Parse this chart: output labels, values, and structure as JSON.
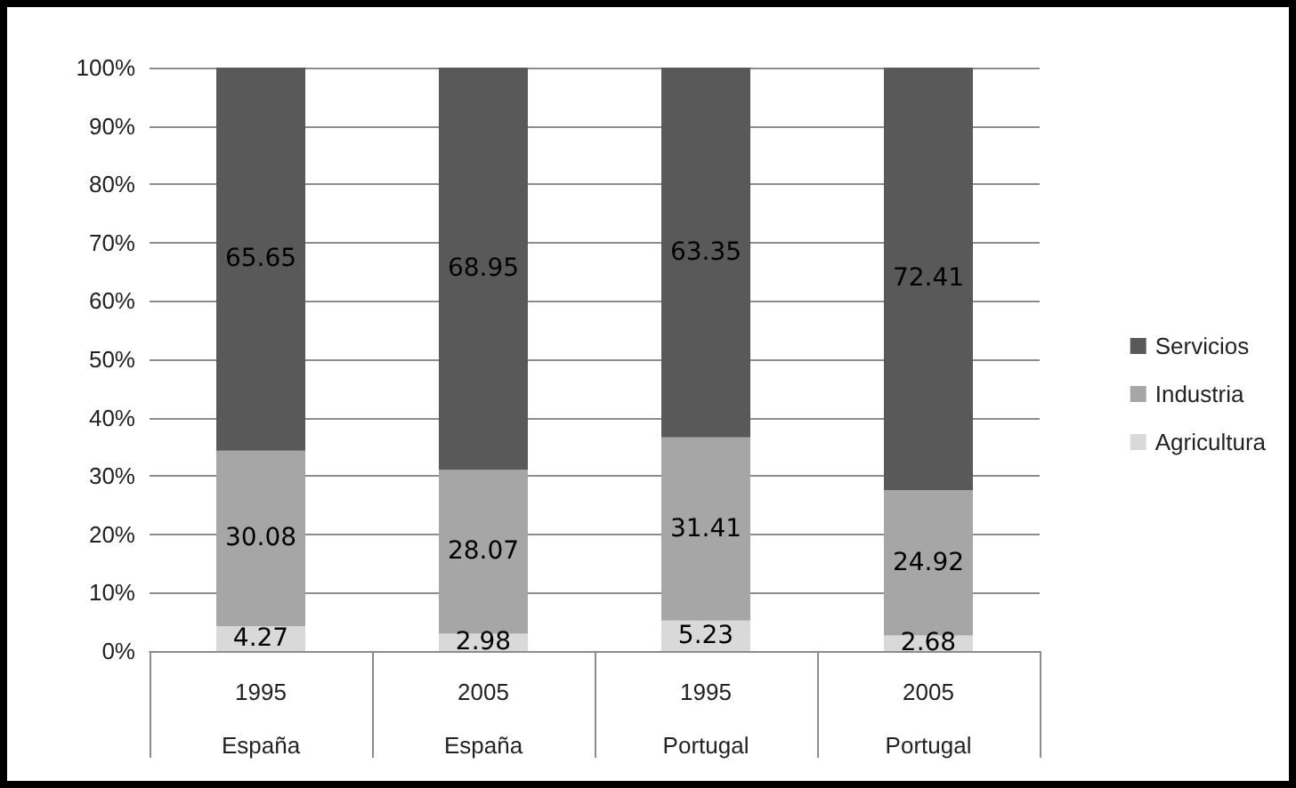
{
  "chart_data": {
    "type": "bar",
    "stacked": true,
    "categories": [
      "1995\nEspaña",
      "2005\nEspaña",
      "1995\nPortugal",
      "2005\nPortugal"
    ],
    "series": [
      {
        "name": "Agricultura",
        "color": "#d9d9d9",
        "values": [
          4.27,
          2.98,
          5.23,
          2.68
        ]
      },
      {
        "name": "Industria",
        "color": "#a6a6a6",
        "values": [
          30.08,
          28.07,
          31.41,
          24.92
        ]
      },
      {
        "name": "Servicios",
        "color": "#595959",
        "values": [
          65.65,
          68.95,
          63.35,
          72.41
        ]
      }
    ],
    "ylim": [
      0,
      100
    ],
    "yticks": [
      {
        "value": 0,
        "label": "0%"
      },
      {
        "value": 10,
        "label": "10%"
      },
      {
        "value": 20,
        "label": "20%"
      },
      {
        "value": 30,
        "label": "30%"
      },
      {
        "value": 40,
        "label": "40%"
      },
      {
        "value": 50,
        "label": "50%"
      },
      {
        "value": 60,
        "label": "60%"
      },
      {
        "value": 70,
        "label": "70%"
      },
      {
        "value": 80,
        "label": "80%"
      },
      {
        "value": 90,
        "label": "90%"
      },
      {
        "value": 100,
        "label": "100%"
      }
    ],
    "grid": "y",
    "legend": "right",
    "data_labels": true
  }
}
